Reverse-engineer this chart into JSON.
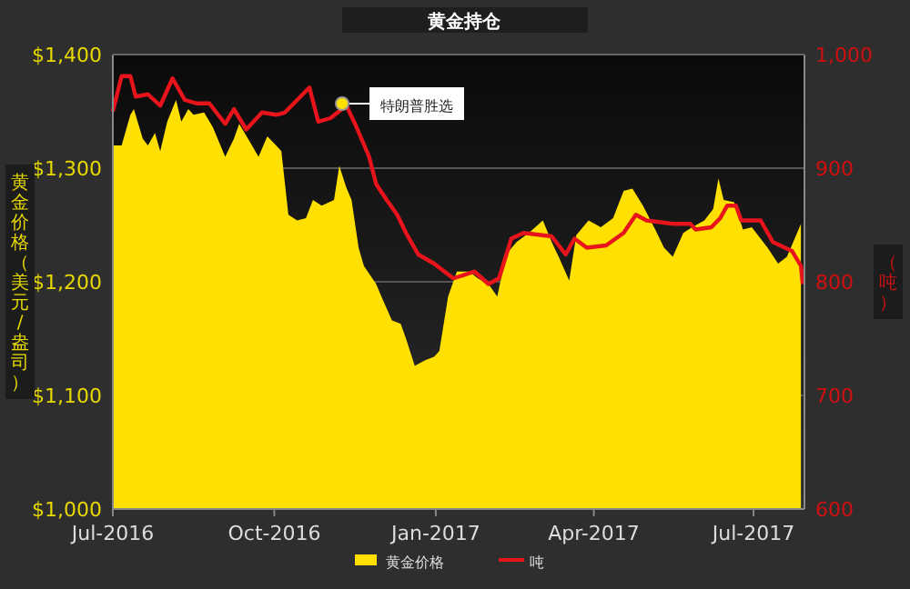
{
  "chart_data": {
    "type": "area",
    "title": "黄金持仓",
    "ylabel": "黄金价格（美元/盎司）",
    "y2label": "（吨）",
    "xlim": [
      "2016-07-01",
      "2017-07-30"
    ],
    "xticks": [
      {
        "value": "2016-07-01",
        "label": "Jul-2016"
      },
      {
        "value": "2016-10-01",
        "label": "Oct-2016"
      },
      {
        "value": "2017-01-01",
        "label": "Jan-2017"
      },
      {
        "value": "2017-04-01",
        "label": "Apr-2017"
      },
      {
        "value": "2017-07-01",
        "label": "Jul-2017"
      }
    ],
    "ylim": [
      1000,
      1400
    ],
    "yticks": [
      {
        "value": 1000,
        "label": "$1,000"
      },
      {
        "value": 1100,
        "label": "$1,100"
      },
      {
        "value": 1200,
        "label": "$1,200"
      },
      {
        "value": 1300,
        "label": "$1,300"
      },
      {
        "value": 1400,
        "label": "$1,400"
      }
    ],
    "y2lim": [
      600,
      1000
    ],
    "y2ticks": [
      600,
      700,
      800,
      900,
      {
        "value": 1000,
        "label": "1,000"
      }
    ],
    "grid": "y",
    "legend": "bottom",
    "annotations": [
      "特朗普胜选"
    ],
    "series": [
      {
        "name": "黄金价格",
        "color": "#ffe000",
        "x": [
          "2016-07-01",
          "2016-07-06",
          "2016-07-11",
          "2016-07-13",
          "2016-07-18",
          "2016-07-21",
          "2016-07-25",
          "2016-07-28",
          "2016-08-01",
          "2016-08-06",
          "2016-08-09",
          "2016-08-13",
          "2016-08-16",
          "2016-08-22",
          "2016-08-27",
          "2016-09-03",
          "2016-09-08",
          "2016-09-11",
          "2016-09-16",
          "2016-09-22",
          "2016-09-27",
          "2016-10-02",
          "2016-10-05",
          "2016-10-09",
          "2016-10-14",
          "2016-10-19",
          "2016-10-23",
          "2016-10-28",
          "2016-11-04",
          "2016-11-07",
          "2016-11-11",
          "2016-11-14",
          "2016-11-18",
          "2016-11-21",
          "2016-11-28",
          "2016-12-01",
          "2016-12-07",
          "2016-12-12",
          "2016-12-15",
          "2016-12-20",
          "2016-12-26",
          "2016-12-31",
          "2017-01-03",
          "2017-01-08",
          "2017-01-13",
          "2017-01-20",
          "2017-01-25",
          "2017-01-31",
          "2017-02-05",
          "2017-02-10",
          "2017-02-16",
          "2017-02-23",
          "2017-03-03",
          "2017-03-08",
          "2017-03-12",
          "2017-03-18",
          "2017-03-22",
          "2017-03-29",
          "2017-04-05",
          "2017-04-12",
          "2017-04-18",
          "2017-04-23",
          "2017-04-29",
          "2017-05-06",
          "2017-05-11",
          "2017-05-16",
          "2017-05-22",
          "2017-05-27",
          "2017-06-03",
          "2017-06-08",
          "2017-06-11",
          "2017-06-14",
          "2017-06-20",
          "2017-06-25",
          "2017-06-30",
          "2017-07-09",
          "2017-07-15",
          "2017-07-20",
          "2017-07-25",
          "2017-07-28"
        ],
        "values": [
          1320,
          1320,
          1347,
          1352,
          1326,
          1320,
          1331,
          1315,
          1341,
          1360,
          1341,
          1352,
          1347,
          1349,
          1336,
          1310,
          1326,
          1339,
          1326,
          1310,
          1328,
          1320,
          1315,
          1259,
          1254,
          1256,
          1272,
          1267,
          1272,
          1302,
          1283,
          1272,
          1230,
          1214,
          1198,
          1187,
          1166,
          1163,
          1150,
          1126,
          1131,
          1134,
          1139,
          1187,
          1209,
          1209,
          1203,
          1198,
          1187,
          1224,
          1235,
          1243,
          1254,
          1235,
          1222,
          1201,
          1241,
          1254,
          1248,
          1256,
          1280,
          1282,
          1267,
          1246,
          1230,
          1222,
          1243,
          1248,
          1254,
          1264,
          1291,
          1272,
          1270,
          1246,
          1248,
          1230,
          1216,
          1222,
          1240,
          1251
        ]
      },
      {
        "name": "吨",
        "type": "line",
        "axis": "y2",
        "color": "#e8141c",
        "x": [
          "2016-07-01",
          "2016-07-06",
          "2016-07-11",
          "2016-07-14",
          "2016-07-21",
          "2016-07-28",
          "2016-08-04",
          "2016-08-11",
          "2016-08-18",
          "2016-08-25",
          "2016-09-03",
          "2016-09-08",
          "2016-09-15",
          "2016-09-24",
          "2016-10-02",
          "2016-10-07",
          "2016-10-14",
          "2016-10-21",
          "2016-10-26",
          "2016-11-02",
          "2016-11-06",
          "2016-11-11",
          "2016-11-16",
          "2016-11-24",
          "2016-11-28",
          "2016-12-04",
          "2016-12-10",
          "2016-12-15",
          "2016-12-22",
          "2016-12-31",
          "2017-01-11",
          "2017-01-23",
          "2017-01-31",
          "2017-02-06",
          "2017-02-13",
          "2017-02-20",
          "2017-03-08",
          "2017-03-16",
          "2017-03-21",
          "2017-03-28",
          "2017-04-08",
          "2017-04-18",
          "2017-04-25",
          "2017-05-01",
          "2017-05-16",
          "2017-05-26",
          "2017-05-29",
          "2017-06-07",
          "2017-06-12",
          "2017-06-16",
          "2017-06-21",
          "2017-06-24",
          "2017-07-05",
          "2017-07-12",
          "2017-07-23",
          "2017-07-28",
          "2017-07-29"
        ],
        "values": [
          950,
          981,
          981,
          963,
          965,
          955,
          979,
          960,
          957,
          957,
          939,
          952,
          934,
          949,
          947,
          949,
          960,
          971,
          941,
          944,
          949,
          955,
          939,
          910,
          886,
          872,
          859,
          843,
          824,
          816,
          803,
          809,
          798,
          803,
          838,
          843,
          840,
          824,
          838,
          830,
          832,
          843,
          859,
          854,
          851,
          851,
          846,
          848,
          856,
          867,
          867,
          854,
          854,
          835,
          827,
          814,
          798
        ]
      }
    ]
  }
}
